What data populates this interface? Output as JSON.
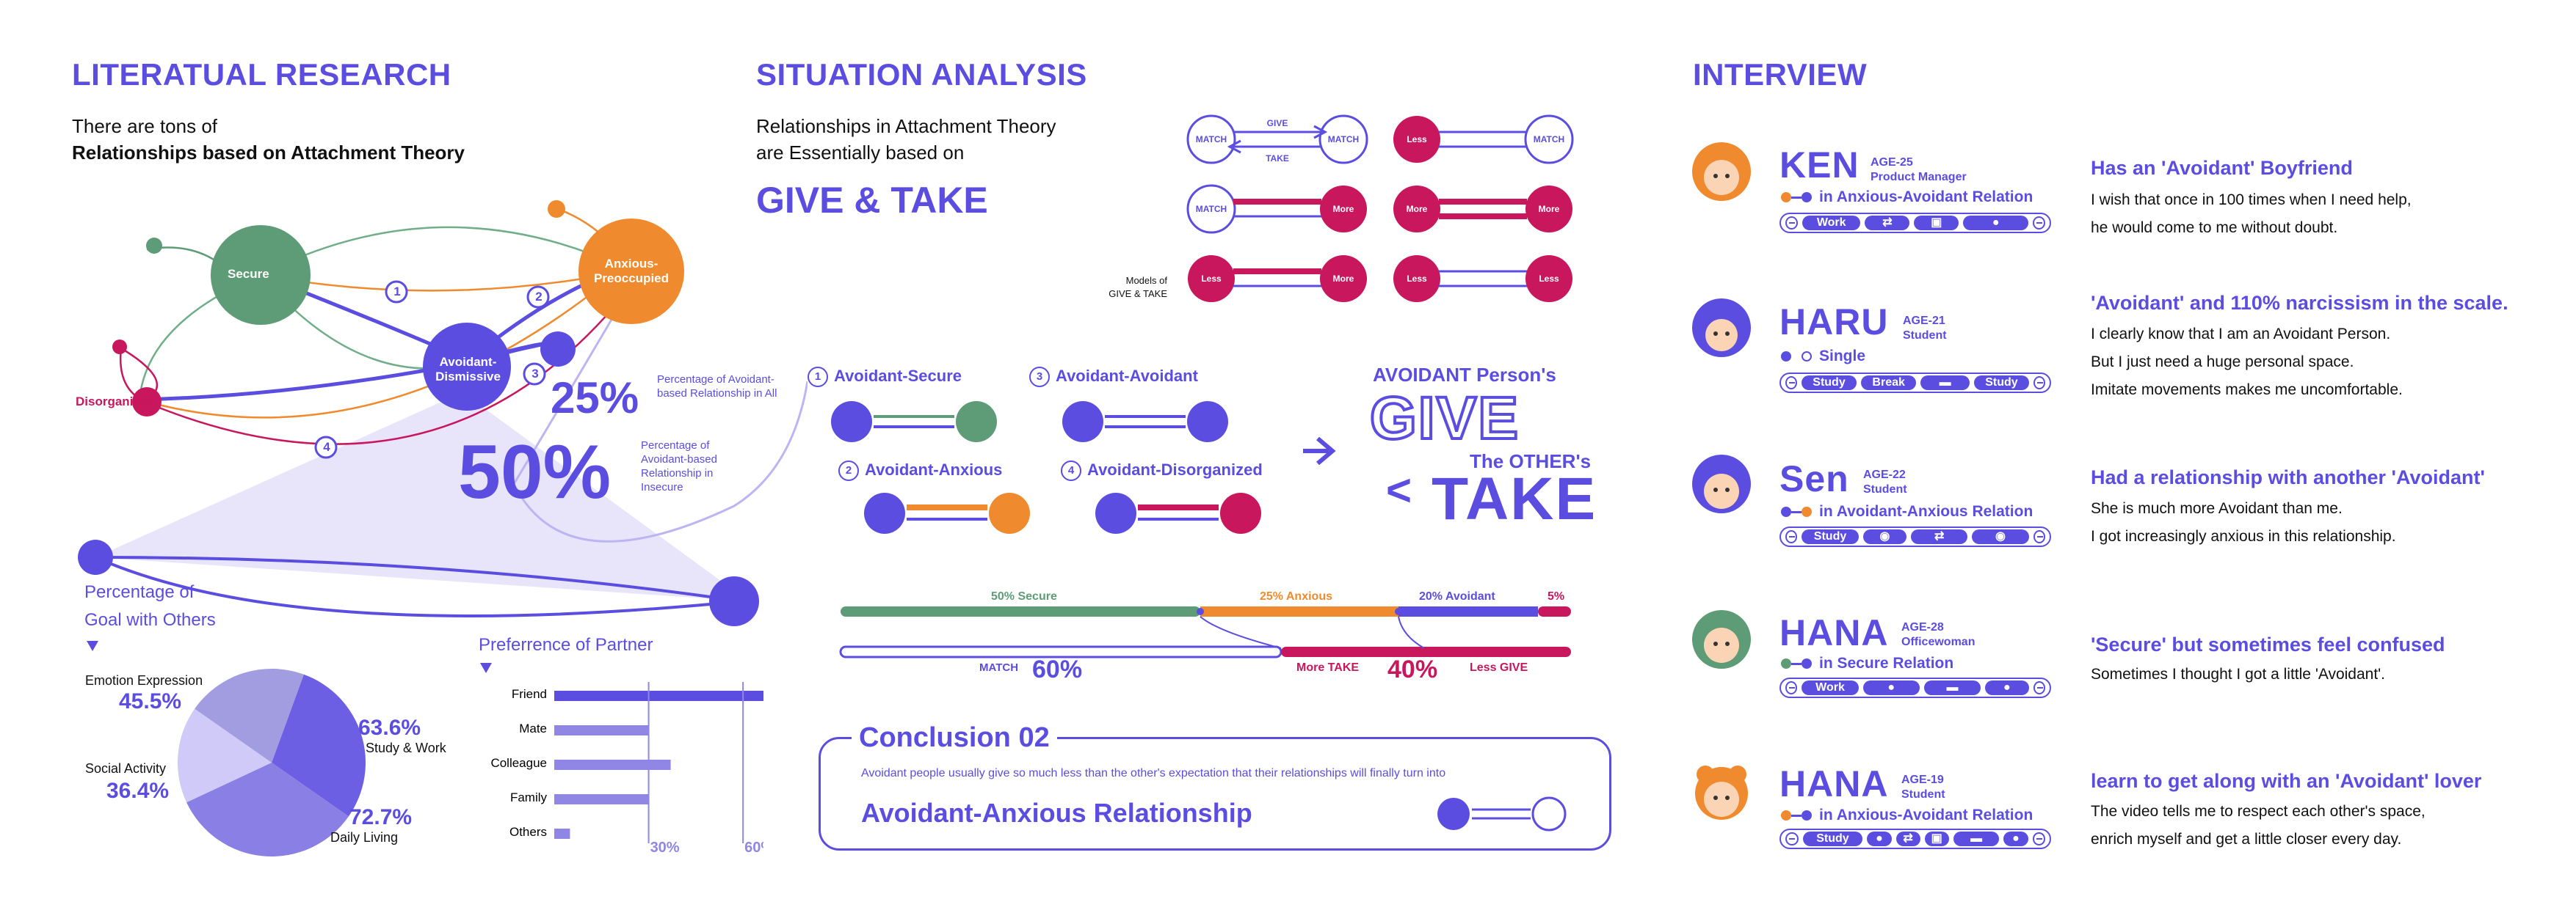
{
  "colors": {
    "purple": "#5b4de0",
    "pink": "#c8175d",
    "orange": "#f08a2e",
    "green": "#5d9c76",
    "lavender": "#e4e1fb"
  },
  "lit": {
    "title": "LITERATUAL RESEARCH",
    "intro1": "There are tons of",
    "intro2": "Relationships based on Attachment Theory",
    "nodes": {
      "secure": "Secure",
      "anxious": "Anxious-Preoccupied",
      "avoidant": "Avoidant-Dismissive",
      "disorganized": "Disorganized"
    },
    "numbers": [
      "1",
      "2",
      "3",
      "4"
    ],
    "pct1": "25%",
    "pct1_note": "Percentage of Avoidant-based Relationship in All",
    "pct2": "50%",
    "pct2_note": "Percentage of Avoidant-based Relationship in Insecure",
    "goal_title1": "Percentage of",
    "goal_title2": "Goal with Others",
    "pie": {
      "emotion_label": "Emotion Expression",
      "emotion_pct": "45.5%",
      "social_label": "Social Activity",
      "social_pct": "36.4%",
      "study_label": "Study & Work",
      "study_pct": "63.6%",
      "daily_label": "Daily Living",
      "daily_pct": "72.7%"
    },
    "partner_title": "Preferrence of Partner",
    "bar_ticks": [
      "30%",
      "60%"
    ]
  },
  "chart_data": [
    {
      "type": "pie",
      "title": "Percentage of Goal with Others",
      "categories": [
        "Study & Work",
        "Daily Living",
        "Social Activity",
        "Emotion Expression"
      ],
      "values": [
        63.6,
        72.7,
        36.4,
        45.5
      ],
      "colors": [
        "#6d5fe3",
        "#8a7fe4",
        "#cfcaf7",
        "#a29ce0"
      ]
    },
    {
      "type": "bar",
      "title": "Preferrence of Partner",
      "orientation": "horizontal",
      "categories": [
        "Friend",
        "Mate",
        "Colleague",
        "Family",
        "Others"
      ],
      "values": [
        68,
        30,
        37,
        30,
        5
      ],
      "xlim": [
        0,
        70
      ],
      "ticks": [
        30,
        60
      ]
    }
  ],
  "sit": {
    "title": "SITUATION ANALYSIS",
    "intro1": "Relationships in Attachment Theory",
    "intro2": "are Essentially based on",
    "give_take": "GIVE & TAKE",
    "models_label1": "Models of",
    "models_label2": "GIVE & TAKE",
    "models": {
      "match": "MATCH",
      "give": "GIVE",
      "take": "TAKE",
      "less_give": "Less GIVE",
      "more_take": "More TAKE"
    },
    "pairs": [
      {
        "num": "1",
        "label": "Avoidant-Secure"
      },
      {
        "num": "3",
        "label": "Avoidant-Avoidant"
      },
      {
        "num": "2",
        "label": "Avoidant-Anxious"
      },
      {
        "num": "4",
        "label": "Avoidant-Disorganized"
      }
    ],
    "avoidant_person": "AVOIDANT Person's",
    "give_word": "GIVE",
    "others": "The OTHER's",
    "take_word": "TAKE",
    "lt": "<",
    "bar_labels": {
      "secure": "50% Secure",
      "anxious": "25% Anxious",
      "avoidant": "20% Avoidant",
      "other": "5%"
    },
    "bar2": {
      "match": "MATCH",
      "match_pct": "60%",
      "more_take": "More TAKE",
      "pct40": "40%",
      "less_give": "Less GIVE"
    },
    "conclusion_title": "Conclusion 02",
    "conclusion_text": "Avoidant people usually give  so much less than the other's expectation that their relationships will finally turn into",
    "conclusion_big": "Avoidant-Anxious Relationship"
  },
  "interview": {
    "title": "INTERVIEW",
    "people": [
      {
        "name": "KEN",
        "age": "AGE-25",
        "job": "Product Manager",
        "rel": "in Anxious-Avoidant Relation",
        "tags": [
          "Work",
          "⇄",
          "▣",
          "●"
        ],
        "q": "Has an 'Avoidant' Boyfriend",
        "lines": [
          "I wish that once in 100 times when I need help,",
          "he would come to me without doubt."
        ]
      },
      {
        "name": "HARU",
        "age": "AGE-21",
        "job": "Student",
        "rel": "Single",
        "tags": [
          "Study",
          "Break",
          "▬",
          "Study"
        ],
        "q": "'Avoidant' and 110% narcissism in the scale.",
        "lines": [
          "I clearly know that I am an Avoidant Person.",
          "But I just need a huge personal space.",
          "Imitate movements makes me uncomfortable."
        ]
      },
      {
        "name": "Sen",
        "age": "AGE-22",
        "job": "Student",
        "rel": "in Avoidant-Anxious Relation",
        "tags": [
          "Study",
          "◉",
          "⇄",
          "◉"
        ],
        "q": "Had a relationship with another 'Avoidant'",
        "lines": [
          "She is much more Avoidant than me.",
          "I got increasingly anxious in this relationship."
        ]
      },
      {
        "name": "HANA",
        "age": "AGE-28",
        "job": "Officewoman",
        "rel": "in Secure Relation",
        "tags": [
          "Work",
          "●",
          "▬",
          "●"
        ],
        "q": "'Secure' but sometimes feel confused",
        "lines": [
          "Sometimes I thought I got a little 'Avoidant'."
        ]
      },
      {
        "name": "HANA",
        "age": "AGE-19",
        "job": "Student",
        "rel": "in Anxious-Avoidant Relation",
        "tags": [
          "Study",
          "●",
          "⇄",
          "▣",
          "▬",
          "●"
        ],
        "q": "learn to get along with an 'Avoidant' lover",
        "lines": [
          "The video tells me to respect each other's space,",
          "enrich myself and get a little closer every day."
        ]
      }
    ]
  }
}
